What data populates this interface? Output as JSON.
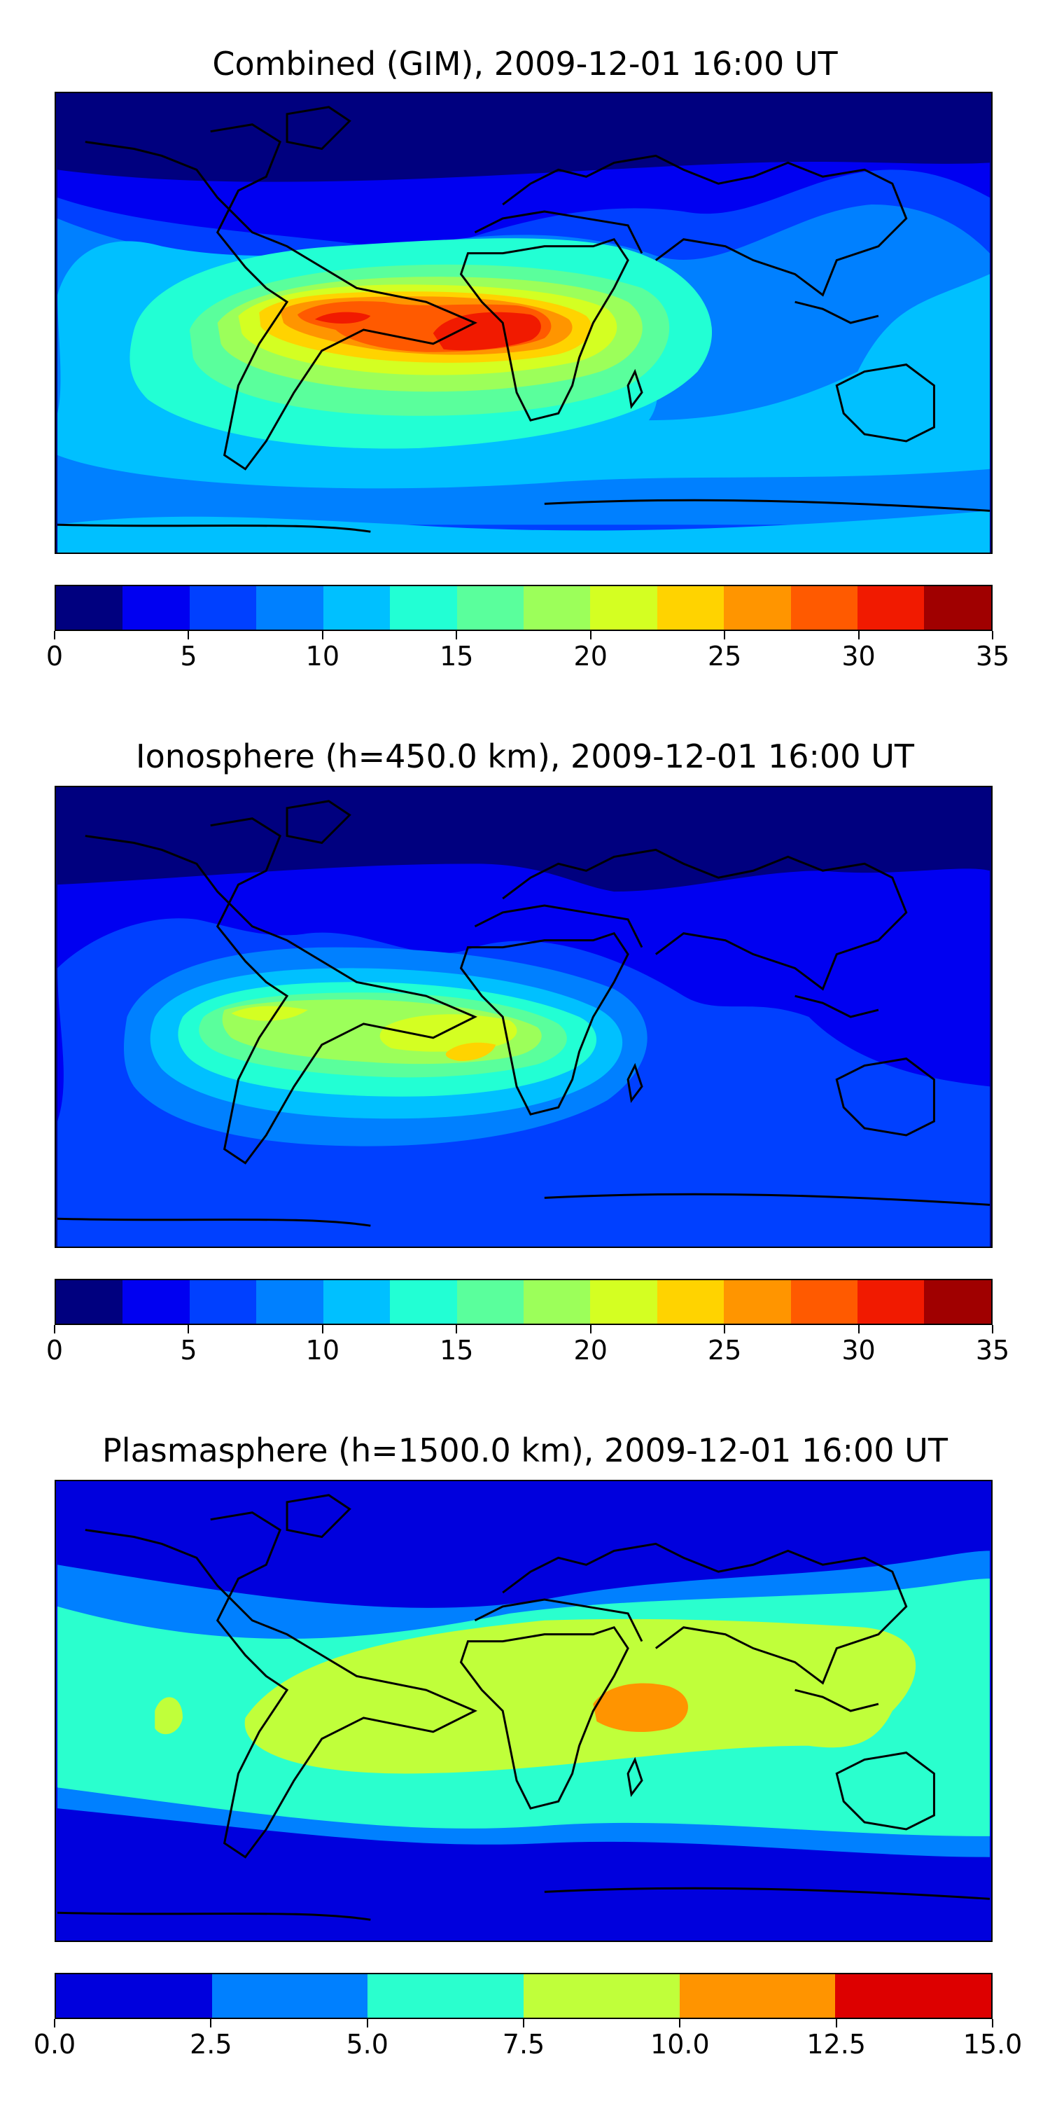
{
  "panels": [
    {
      "title": "Combined (GIM), 2009-12-01 16:00 UT",
      "colorbar": {
        "colors": [
          "#00007f",
          "#0000f1",
          "#0040ff",
          "#0080ff",
          "#00c0ff",
          "#22ffd4",
          "#5aff9c",
          "#9cff5a",
          "#d4ff22",
          "#ffd300",
          "#ff9500",
          "#ff5a00",
          "#f11a00",
          "#a00000"
        ],
        "ticks": [
          "0",
          "5",
          "10",
          "15",
          "20",
          "25",
          "30",
          "35"
        ]
      }
    },
    {
      "title": "Ionosphere  (h=450.0 km), 2009-12-01 16:00 UT",
      "colorbar": {
        "colors": [
          "#00007f",
          "#0000f1",
          "#0040ff",
          "#0080ff",
          "#00c0ff",
          "#22ffd4",
          "#5aff9c",
          "#9cff5a",
          "#d4ff22",
          "#ffd300",
          "#ff9500",
          "#ff5a00",
          "#f11a00",
          "#a00000"
        ],
        "ticks": [
          "0",
          "5",
          "10",
          "15",
          "20",
          "25",
          "30",
          "35"
        ]
      }
    },
    {
      "title": "Plasmasphere (h=1500.0 km), 2009-12-01 16:00 UT",
      "colorbar": {
        "colors": [
          "#0000dd",
          "#0080ff",
          "#2affce",
          "#c0ff3a",
          "#ff9400",
          "#dd0000"
        ],
        "ticks": [
          "0.0",
          "2.5",
          "5.0",
          "7.5",
          "10.0",
          "12.5",
          "15.0"
        ]
      }
    }
  ]
}
